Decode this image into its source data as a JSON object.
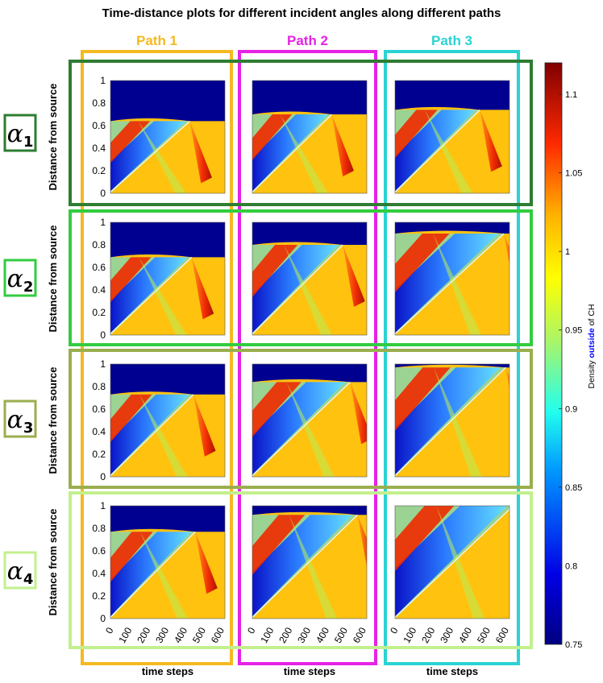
{
  "chart_data": {
    "type": "heatmap",
    "title": "Time-distance plots for different incident angles along different paths",
    "paths": [
      "Path 1",
      "Path 2",
      "Path 3"
    ],
    "path_colors": [
      "#f5b921",
      "#e622e6",
      "#2ad3d3"
    ],
    "angles": [
      {
        "symbol": "α",
        "sub": "1",
        "color": "#2e7d32"
      },
      {
        "symbol": "α",
        "sub": "2",
        "color": "#33cc40"
      },
      {
        "symbol": "α",
        "sub": "3",
        "color": "#9aae4e"
      },
      {
        "symbol": "α",
        "sub": "4",
        "color": "#c2f08e"
      }
    ],
    "ylabel": "Distance from source",
    "xlabel": "time steps",
    "ylim": [
      0,
      1
    ],
    "xlim": [
      0,
      620
    ],
    "yticks": [
      "0",
      "0.2",
      "0.4",
      "0.6",
      "0.8",
      "1"
    ],
    "xticks": [
      "0",
      "100",
      "200",
      "300",
      "400",
      "500",
      "600"
    ],
    "colorbar": {
      "label_prefix": "Density ",
      "label_emphasis": "outside",
      "label_suffix": " of CH",
      "range": [
        0.75,
        1.12
      ],
      "ticks": [
        "0.75",
        "0.8",
        "0.85",
        "0.9",
        "0.95",
        "1",
        "1.05",
        "1.1"
      ]
    },
    "panels": [
      [
        {
          "top": 0.64,
          "cross": 430
        },
        {
          "top": 0.7,
          "cross": 430
        },
        {
          "top": 0.74,
          "cross": 460
        }
      ],
      [
        {
          "top": 0.69,
          "cross": 440
        },
        {
          "top": 0.8,
          "cross": 490
        },
        {
          "top": 0.9,
          "cross": 590
        }
      ],
      [
        {
          "top": 0.73,
          "cross": 450
        },
        {
          "top": 0.84,
          "cross": 530
        },
        {
          "top": 0.97,
          "cross": 600
        }
      ],
      [
        {
          "top": 0.77,
          "cross": 460
        },
        {
          "top": 0.92,
          "cross": 570
        },
        {
          "top": 1.0,
          "cross": 640
        }
      ]
    ]
  }
}
